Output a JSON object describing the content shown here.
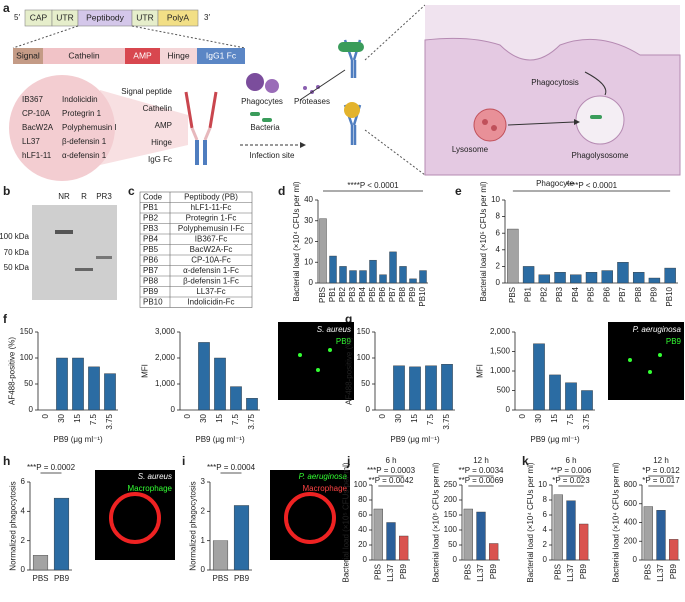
{
  "panel_labels": [
    "a",
    "b",
    "c",
    "d",
    "e",
    "f",
    "g",
    "h",
    "i",
    "j",
    "k"
  ],
  "construct": {
    "prime5": "5′",
    "prime3": "3′",
    "mrna": [
      "CAP",
      "UTR",
      "Peptibody",
      "UTR",
      "PolyA"
    ],
    "protein": [
      "Signal",
      "Cathelin",
      "AMP",
      "Hinge",
      "IgG1 Fc"
    ],
    "amps": [
      [
        "IB367",
        "Indolicidin"
      ],
      [
        "CP-10A",
        "Protegrin 1"
      ],
      [
        "BacW2A",
        "Polyphemusin I"
      ],
      [
        "LL37",
        "β-defensin 1"
      ],
      [
        "hLF1-11",
        "α-defensin 1"
      ]
    ],
    "domains": [
      "Signal peptide",
      "Cathelin",
      "AMP",
      "Hinge",
      "IgG Fc"
    ]
  },
  "mechanism": {
    "phagocytes": "Phagocytes",
    "bacteria": "Bacteria",
    "proteases": "Proteases",
    "site": "Infection site",
    "phagocytosis": "Phagocytosis",
    "lysosome": "Lysosome",
    "phagolysosome": "Phagolysosome",
    "phagocyte": "Phagocyte"
  },
  "gel": {
    "lanes": [
      "NR",
      "R",
      "PR3"
    ],
    "markers": [
      "100 kDa",
      "70 kDa",
      "50 kDa"
    ]
  },
  "table": {
    "header": [
      "Code",
      "Peptibody (PB)"
    ],
    "rows": [
      [
        "PB1",
        "hLF1-11-Fc"
      ],
      [
        "PB2",
        "Protegrin 1-Fc"
      ],
      [
        "PB3",
        "Polyphemusin I-Fc"
      ],
      [
        "PB4",
        "IB367-Fc"
      ],
      [
        "PB5",
        "BacW2A-Fc"
      ],
      [
        "PB6",
        "CP-10A-Fc"
      ],
      [
        "PB7",
        "α-defensin 1-Fc"
      ],
      [
        "PB8",
        "β-defensin 1-Fc"
      ],
      [
        "PB9",
        "LL37-Fc"
      ],
      [
        "PB10",
        "Indolicidin-Fc"
      ]
    ]
  },
  "images": [
    {
      "labels": [
        "S. aureus",
        "PB9"
      ]
    },
    {
      "labels": [
        "P. aeruginosa",
        "PB9"
      ]
    },
    {
      "labels": [
        "S. aureus",
        "Macrophage"
      ]
    },
    {
      "labels": [
        "P. aeruginosa",
        "Macrophage"
      ]
    }
  ],
  "chart_data": [
    {
      "type": "bar",
      "ylabel": "Bacterial load (×10⁴ CFUs per ml)",
      "categories": [
        "PBS",
        "PB1",
        "PB2",
        "PB3",
        "PB4",
        "PB5",
        "PB6",
        "PB7",
        "PB8",
        "PB9",
        "PB10"
      ],
      "values": [
        31,
        13,
        8,
        6,
        6,
        11,
        4,
        15,
        8,
        2,
        6
      ],
      "colors": [
        "#a3a3a3",
        "#2b6ca3",
        "#2b6ca3",
        "#2b6ca3",
        "#2b6ca3",
        "#2b6ca3",
        "#2b6ca3",
        "#2b6ca3",
        "#2b6ca3",
        "#2b6ca3",
        "#2b6ca3"
      ],
      "ylim": [
        0,
        40
      ],
      "yticks": [
        0,
        10,
        20,
        30,
        40
      ],
      "annotations": [
        "****P < 0.0001"
      ]
    },
    {
      "type": "bar",
      "ylabel": "Bacterial load (×10⁵ CFUs per ml)",
      "categories": [
        "PBS",
        "PB1",
        "PB2",
        "PB3",
        "PB4",
        "PB5",
        "PB6",
        "PB7",
        "PB8",
        "PB9",
        "PB10"
      ],
      "values": [
        6.5,
        2,
        1,
        1.3,
        1,
        1.3,
        1.5,
        2.5,
        1.3,
        0.6,
        1.8
      ],
      "colors": [
        "#a3a3a3",
        "#2b6ca3",
        "#2b6ca3",
        "#2b6ca3",
        "#2b6ca3",
        "#2b6ca3",
        "#2b6ca3",
        "#2b6ca3",
        "#2b6ca3",
        "#2b6ca3",
        "#2b6ca3"
      ],
      "ylim": [
        0,
        10
      ],
      "yticks": [
        0,
        2,
        4,
        6,
        8,
        10
      ],
      "annotations": [
        "****P < 0.0001"
      ]
    },
    {
      "type": "bar",
      "ylabel": "AF488-positive (%)",
      "xlabel": "PB9 (μg ml⁻¹)",
      "categories": [
        "0",
        "30",
        "15",
        "7.5",
        "3.75"
      ],
      "values": [
        0,
        100,
        100,
        83,
        70
      ],
      "colors": [
        "#2b6ca3",
        "#2b6ca3",
        "#2b6ca3",
        "#2b6ca3",
        "#2b6ca3"
      ],
      "ylim": [
        0,
        150
      ],
      "yticks": [
        0,
        50,
        100,
        150
      ]
    },
    {
      "type": "bar",
      "ylabel": "MFI",
      "xlabel": "PB9 (μg ml⁻¹)",
      "categories": [
        "0",
        "30",
        "15",
        "7.5",
        "3.75"
      ],
      "values": [
        0,
        2600,
        2000,
        900,
        450
      ],
      "colors": [
        "#2b6ca3",
        "#2b6ca3",
        "#2b6ca3",
        "#2b6ca3",
        "#2b6ca3"
      ],
      "ylim": [
        0,
        3000
      ],
      "yticks": [
        0,
        {
          "value": 1000,
          "label": "1,000"
        },
        {
          "value": 2000,
          "label": "2,000"
        },
        {
          "value": 3000,
          "label": "3,000"
        }
      ]
    },
    {
      "type": "bar",
      "ylabel": "AF488-positive (%)",
      "xlabel": "PB9 (μg ml⁻¹)",
      "categories": [
        "0",
        "30",
        "15",
        "7.5",
        "3.75"
      ],
      "values": [
        0,
        85,
        83,
        85,
        88
      ],
      "colors": [
        "#2b6ca3",
        "#2b6ca3",
        "#2b6ca3",
        "#2b6ca3",
        "#2b6ca3"
      ],
      "ylim": [
        0,
        150
      ],
      "yticks": [
        0,
        50,
        100,
        150
      ]
    },
    {
      "type": "bar",
      "ylabel": "MFI",
      "xlabel": "PB9 (μg ml⁻¹)",
      "categories": [
        "0",
        "30",
        "15",
        "7.5",
        "3.75"
      ],
      "values": [
        0,
        1700,
        900,
        700,
        500
      ],
      "colors": [
        "#2b6ca3",
        "#2b6ca3",
        "#2b6ca3",
        "#2b6ca3",
        "#2b6ca3"
      ],
      "ylim": [
        0,
        2000
      ],
      "yticks": [
        0,
        500,
        {
          "value": 1000,
          "label": "1,000"
        },
        {
          "value": 1500,
          "label": "1,500"
        },
        {
          "value": 2000,
          "label": "2,000"
        }
      ]
    },
    {
      "type": "bar",
      "ylabel": "Normalized phagocytosis",
      "categories": [
        "PBS",
        "PB9"
      ],
      "values": [
        1,
        4.9
      ],
      "colors": [
        "#a3a3a3",
        "#2b6ca3"
      ],
      "ylim": [
        0,
        6
      ],
      "yticks": [
        0,
        2,
        4,
        6
      ],
      "annotations": [
        "***P = 0.0002"
      ]
    },
    {
      "type": "bar",
      "ylabel": "Normalized phagocytosis",
      "categories": [
        "PBS",
        "PB9"
      ],
      "values": [
        1,
        2.2
      ],
      "colors": [
        "#a3a3a3",
        "#2b6ca3"
      ],
      "ylim": [
        0,
        3
      ],
      "yticks": [
        0,
        1,
        2,
        3
      ],
      "annotations": [
        "***P = 0.0004"
      ]
    },
    {
      "type": "bar",
      "title": "6 h",
      "ylabel": "Bacterial load (×10⁵ CFUs per ml)",
      "categories": [
        "PBS",
        "LL37",
        "PB9"
      ],
      "values": [
        68,
        50,
        32
      ],
      "colors": [
        "#a3a3a3",
        "#2b5f9a",
        "#d9534f"
      ],
      "ylim": [
        0,
        100
      ],
      "yticks": [
        0,
        20,
        40,
        60,
        80,
        100
      ],
      "annotations": [
        "***P = 0.0003",
        "**P = 0.0042"
      ]
    },
    {
      "type": "bar",
      "title": "12 h",
      "ylabel": "Bacterial load (×10⁵ CFUs per ml)",
      "categories": [
        "PBS",
        "LL37",
        "PB9"
      ],
      "values": [
        170,
        160,
        55
      ],
      "colors": [
        "#a3a3a3",
        "#2b5f9a",
        "#d9534f"
      ],
      "ylim": [
        0,
        250
      ],
      "yticks": [
        0,
        50,
        100,
        150,
        200,
        250
      ],
      "annotations": [
        "**P = 0.0034",
        "**P = 0.0069"
      ]
    },
    {
      "type": "bar",
      "title": "6 h",
      "ylabel": "Bacterial load (×10⁴ CFUs per ml)",
      "categories": [
        "PBS",
        "LL37",
        "PB9"
      ],
      "values": [
        8.7,
        7.9,
        4.8
      ],
      "colors": [
        "#a3a3a3",
        "#2b5f9a",
        "#d9534f"
      ],
      "ylim": [
        0,
        10
      ],
      "yticks": [
        0,
        2,
        4,
        6,
        8,
        10
      ],
      "annotations": [
        "**P = 0.006",
        "*P = 0.023"
      ]
    },
    {
      "type": "bar",
      "title": "12 h",
      "ylabel": "Bacterial load (×10⁴ CFUs per ml)",
      "categories": [
        "PBS",
        "LL37",
        "PB9"
      ],
      "values": [
        570,
        530,
        220
      ],
      "colors": [
        "#a3a3a3",
        "#2b5f9a",
        "#d9534f"
      ],
      "ylim": [
        0,
        800
      ],
      "yticks": [
        0,
        200,
        400,
        600,
        800
      ],
      "annotations": [
        "*P = 0.012",
        "*P = 0.017"
      ]
    }
  ]
}
